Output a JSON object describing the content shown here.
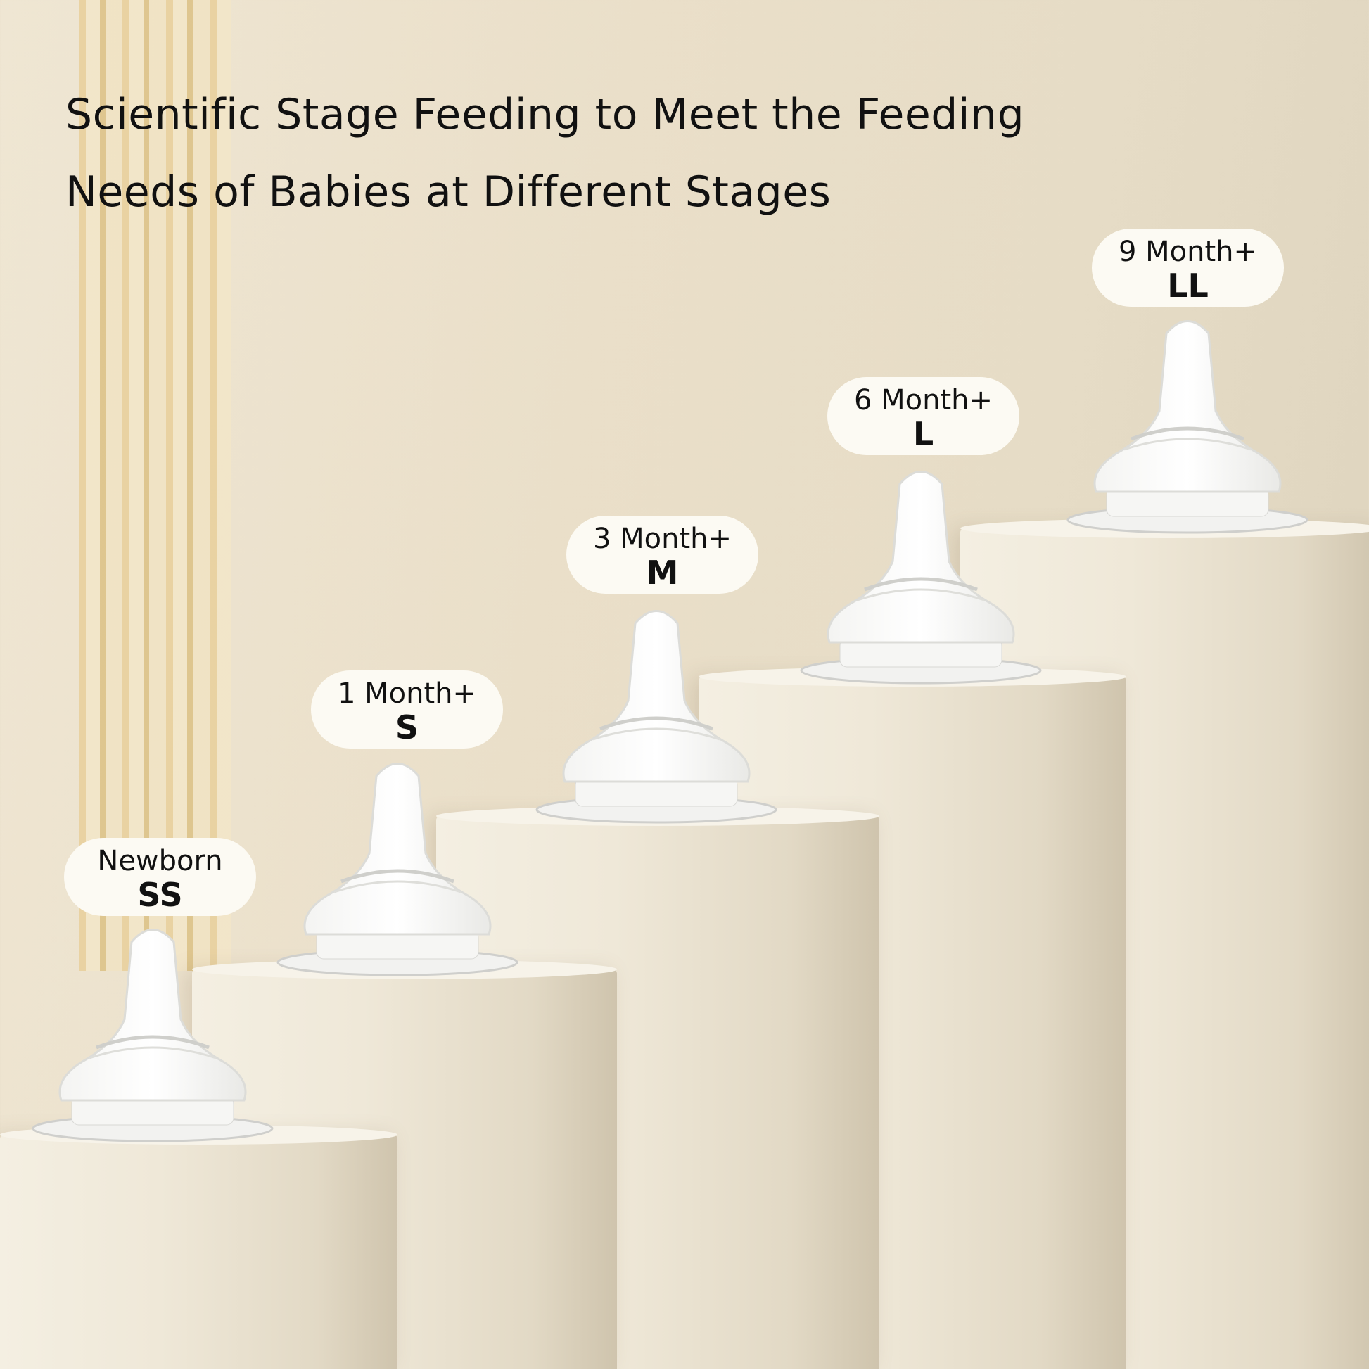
{
  "title": {
    "line1": "Scientific Stage Feeding to Meet the Feeding",
    "line2": "Needs of Babies at Different Stages"
  },
  "stages": [
    {
      "age": "Newborn",
      "size": "SS"
    },
    {
      "age": "1 Month+",
      "size": "S"
    },
    {
      "age": "3 Month+",
      "size": "M"
    },
    {
      "age": "6 Month+",
      "size": "L"
    },
    {
      "age": "9 Month+",
      "size": "LL"
    }
  ],
  "colors": {
    "background": "#eadfc9",
    "pillar": "#efe8d8",
    "label_bg": "#fcfaf3",
    "text": "#111111"
  }
}
